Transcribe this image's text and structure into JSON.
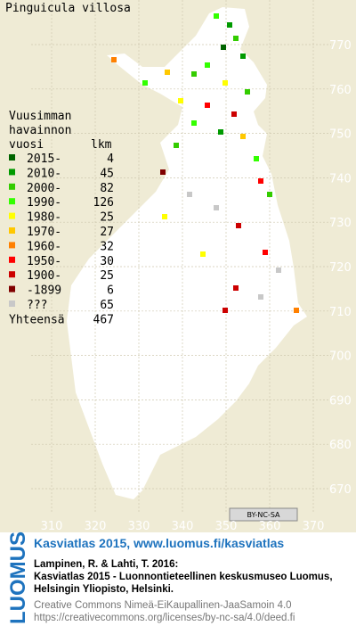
{
  "title": "Pinguicula villosa",
  "legend": {
    "header": [
      "Vuusimman",
      "havainnon",
      "vuosi"
    ],
    "count_header": "lkm",
    "rows": [
      {
        "label": "2015-",
        "count": 4,
        "color": "#006400"
      },
      {
        "label": "2010-",
        "count": 45,
        "color": "#009a00"
      },
      {
        "label": "2000-",
        "count": 82,
        "color": "#33cc00"
      },
      {
        "label": "1990-",
        "count": 126,
        "color": "#33ff00"
      },
      {
        "label": "1980-",
        "count": 25,
        "color": "#ffff00"
      },
      {
        "label": "1970-",
        "count": 27,
        "color": "#ffc800"
      },
      {
        "label": "1960-",
        "count": 32,
        "color": "#ff8000"
      },
      {
        "label": "1950-",
        "count": 30,
        "color": "#ff0000"
      },
      {
        "label": "1900-",
        "count": 25,
        "color": "#cc0000"
      },
      {
        "label": "-1899",
        "count": 6,
        "color": "#800000"
      },
      {
        "label": "???",
        "count": 65,
        "color": "#c8c8c8"
      }
    ],
    "total_label": "Yhteensä",
    "total": 467
  },
  "map": {
    "xticks": [
      310,
      320,
      330,
      340,
      350,
      360,
      370
    ],
    "yticks": [
      770,
      760,
      750,
      740,
      730,
      720,
      710,
      700,
      690,
      680,
      670
    ],
    "license_badge": "BY-NC-SA"
  },
  "footer": {
    "brand": "LUOMUS",
    "headline": "Kasviatlas 2015, www.luomus.fi/kasviatlas",
    "citation": [
      "Lampinen, R. & Lahti, T. 2016:",
      "Kasviatlas 2015 - Luonnontieteellinen keskusmuseo Luomus,",
      "Helsingin Yliopisto, Helsinki."
    ],
    "license": [
      "Creative Commons Nimeä-EiKaupallinen-JaaSamoin 4.0",
      "https://creativecommons.org/licenses/by-nc-sa/4.0/deed.fi"
    ]
  }
}
